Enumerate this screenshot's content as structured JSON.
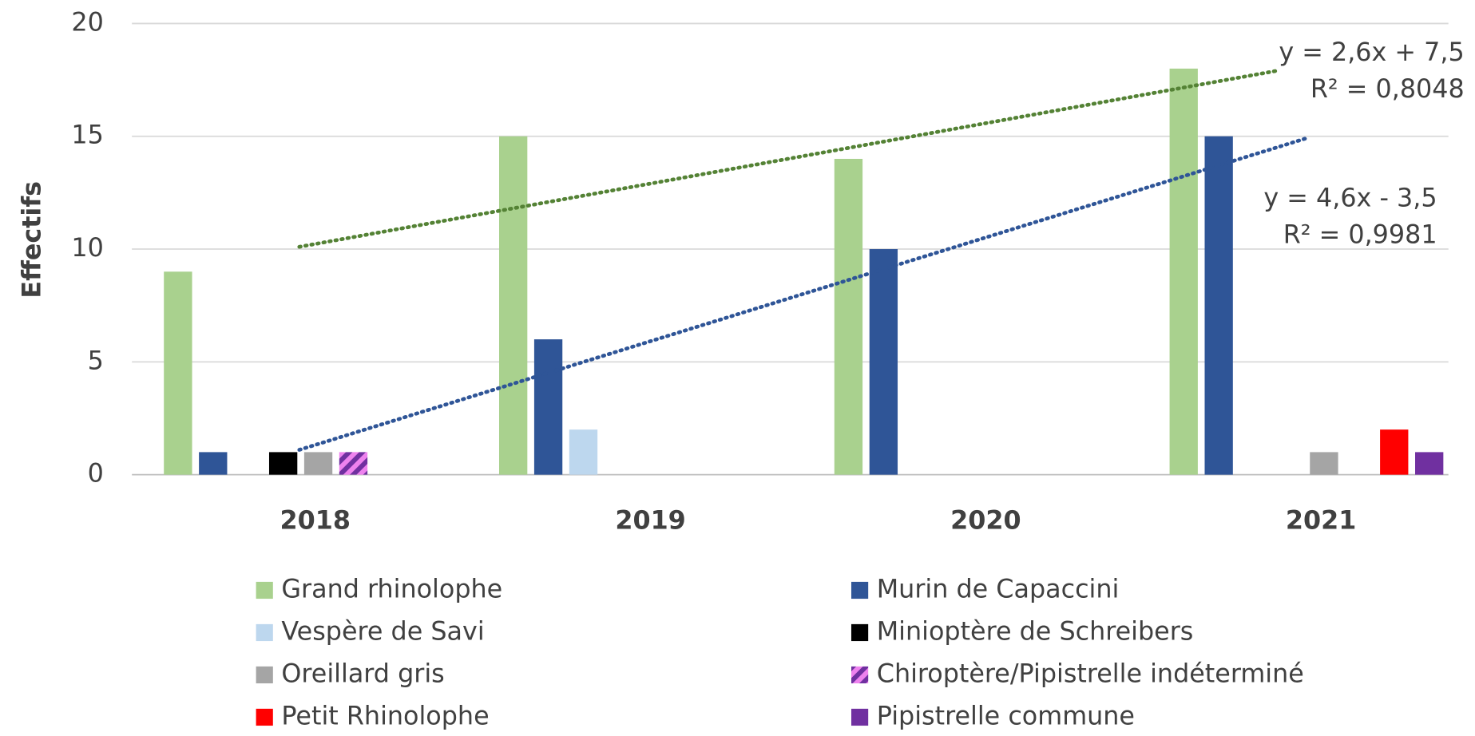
{
  "chart_data": {
    "type": "bar",
    "y_label": "Effectifs",
    "categories": [
      "2018",
      "2019",
      "2020",
      "2021"
    ],
    "ylim": [
      0,
      20
    ],
    "yticks": [
      0,
      5,
      10,
      15,
      20
    ],
    "grid": true,
    "series": [
      {
        "name": "Grand rhinolophe",
        "color": "#a9d18e",
        "values": [
          9,
          15,
          14,
          18
        ],
        "trendline_color": "#548235",
        "trendline_labels": [
          "y = 2,6x + 7,5",
          "R² = 0,8048"
        ]
      },
      {
        "name": "Murin de Capaccini",
        "color": "#2f5597",
        "values": [
          1,
          6,
          10,
          15
        ],
        "trendline_color": "#2f5597",
        "trendline_labels": [
          "y = 4,6x - 3,5",
          "R² = 0,9981"
        ]
      },
      {
        "name": "Vespère de Savi",
        "color": "#bdd7ee",
        "values": [
          0,
          2,
          0,
          0
        ]
      },
      {
        "name": "Minioptère de Schreibers",
        "color": "#000000",
        "values": [
          1,
          0,
          0,
          0
        ]
      },
      {
        "name": "Oreillard gris",
        "color": "#a5a5a5",
        "values": [
          1,
          0,
          0,
          1
        ]
      },
      {
        "name": "Chiroptère/Pipistrelle indéterminé",
        "color": "#ee82ee",
        "hatch_color": "#7030a0",
        "values": [
          1,
          0,
          0,
          0
        ]
      },
      {
        "name": "Petit Rhinolophe",
        "color": "#ff0000",
        "values": [
          0,
          0,
          0,
          2
        ]
      },
      {
        "name": "Pipistrelle commune",
        "color": "#7030a0",
        "values": [
          0,
          0,
          0,
          1
        ]
      }
    ]
  }
}
